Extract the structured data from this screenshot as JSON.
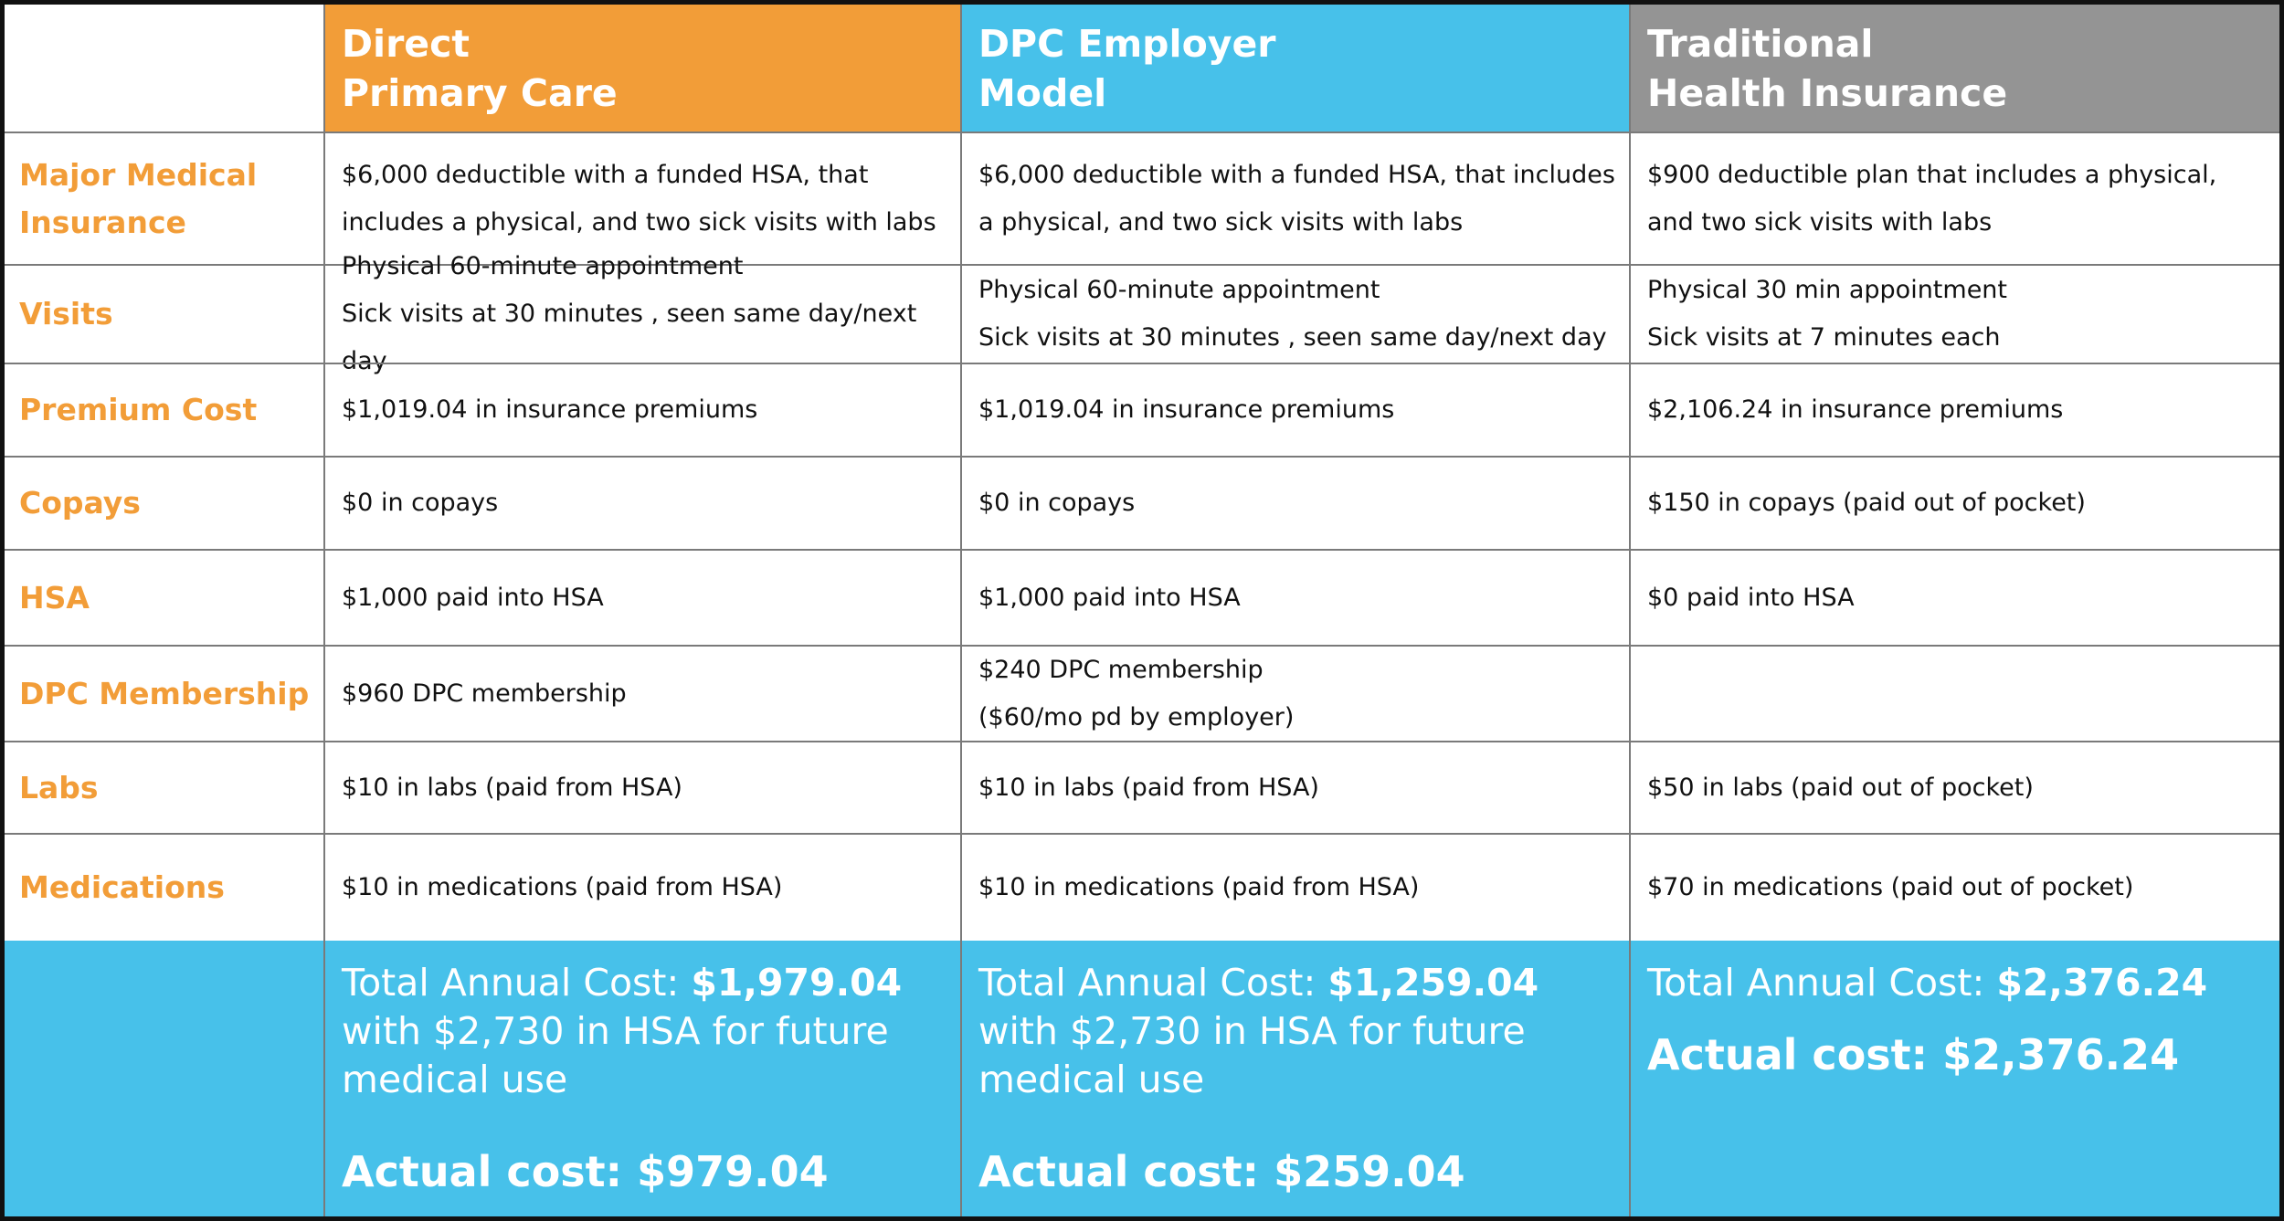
{
  "columns": [
    {
      "lines": [
        "Direct",
        "Primary Care"
      ],
      "color": "#f29d38"
    },
    {
      "lines": [
        "DPC Employer",
        "Model"
      ],
      "color": "#47c1ea"
    },
    {
      "lines": [
        "Traditional",
        "Health Insurance"
      ],
      "color": "#949494"
    }
  ],
  "rows": [
    {
      "label": "Major Medical Insurance",
      "cells": [
        [
          "$6,000 deductible with a funded HSA, that",
          "includes a physical, and two sick visits with labs"
        ],
        [
          "$6,000 deductible with a funded HSA, that includes",
          "a physical, and two sick visits with labs"
        ],
        [
          "$900 deductible plan that includes a physical,",
          "and two sick visits with labs"
        ]
      ]
    },
    {
      "label": "Visits",
      "cells": [
        [
          "Physical 60-minute appointment",
          "Sick visits at 30 minutes , seen same day/next day"
        ],
        [
          "Physical 60-minute appointment",
          "Sick visits at 30 minutes , seen same day/next day"
        ],
        [
          "Physical 30 min appointment",
          "Sick visits at 7 minutes each"
        ]
      ]
    },
    {
      "label": "Premium Cost",
      "cells": [
        [
          "$1,019.04 in insurance premiums"
        ],
        [
          "$1,019.04 in insurance premiums"
        ],
        [
          "$2,106.24 in insurance premiums"
        ]
      ]
    },
    {
      "label": "Copays",
      "cells": [
        [
          "$0 in copays"
        ],
        [
          "$0 in copays"
        ],
        [
          "$150 in copays (paid out of pocket)"
        ]
      ]
    },
    {
      "label": "HSA",
      "cells": [
        [
          "$1,000 paid into HSA"
        ],
        [
          "$1,000 paid into HSA"
        ],
        [
          "$0 paid into HSA"
        ]
      ]
    },
    {
      "label": "DPC Membership",
      "cells": [
        [
          "$960 DPC membership"
        ],
        [
          "$240 DPC membership",
          "($60/mo pd by employer)"
        ],
        []
      ]
    },
    {
      "label": "Labs",
      "cells": [
        [
          "$10 in labs (paid from HSA)"
        ],
        [
          "$10 in labs (paid from HSA)"
        ],
        [
          "$50 in labs (paid out of pocket)"
        ]
      ]
    },
    {
      "label": "Medications",
      "cells": [
        [
          "$10 in medications (paid from HSA)"
        ],
        [
          "$10 in medications (paid from HSA)"
        ],
        [
          "$70 in medications (paid out of pocket)"
        ]
      ]
    }
  ],
  "totals": [
    {
      "total_label": "Total Annual Cost:",
      "total": "$1,979.04",
      "hsa_note": "with $2,730 in HSA for future medical use",
      "actual": "Actual cost: $979.04"
    },
    {
      "total_label": "Total Annual Cost:",
      "total": "$1,259.04",
      "hsa_note": "with $2,730 in HSA for future medical use",
      "actual": "Actual cost: $259.04"
    },
    {
      "total_label": "Total Annual Cost:",
      "total": "$2,376.24",
      "actual": "Actual cost: $2,376.24"
    }
  ]
}
